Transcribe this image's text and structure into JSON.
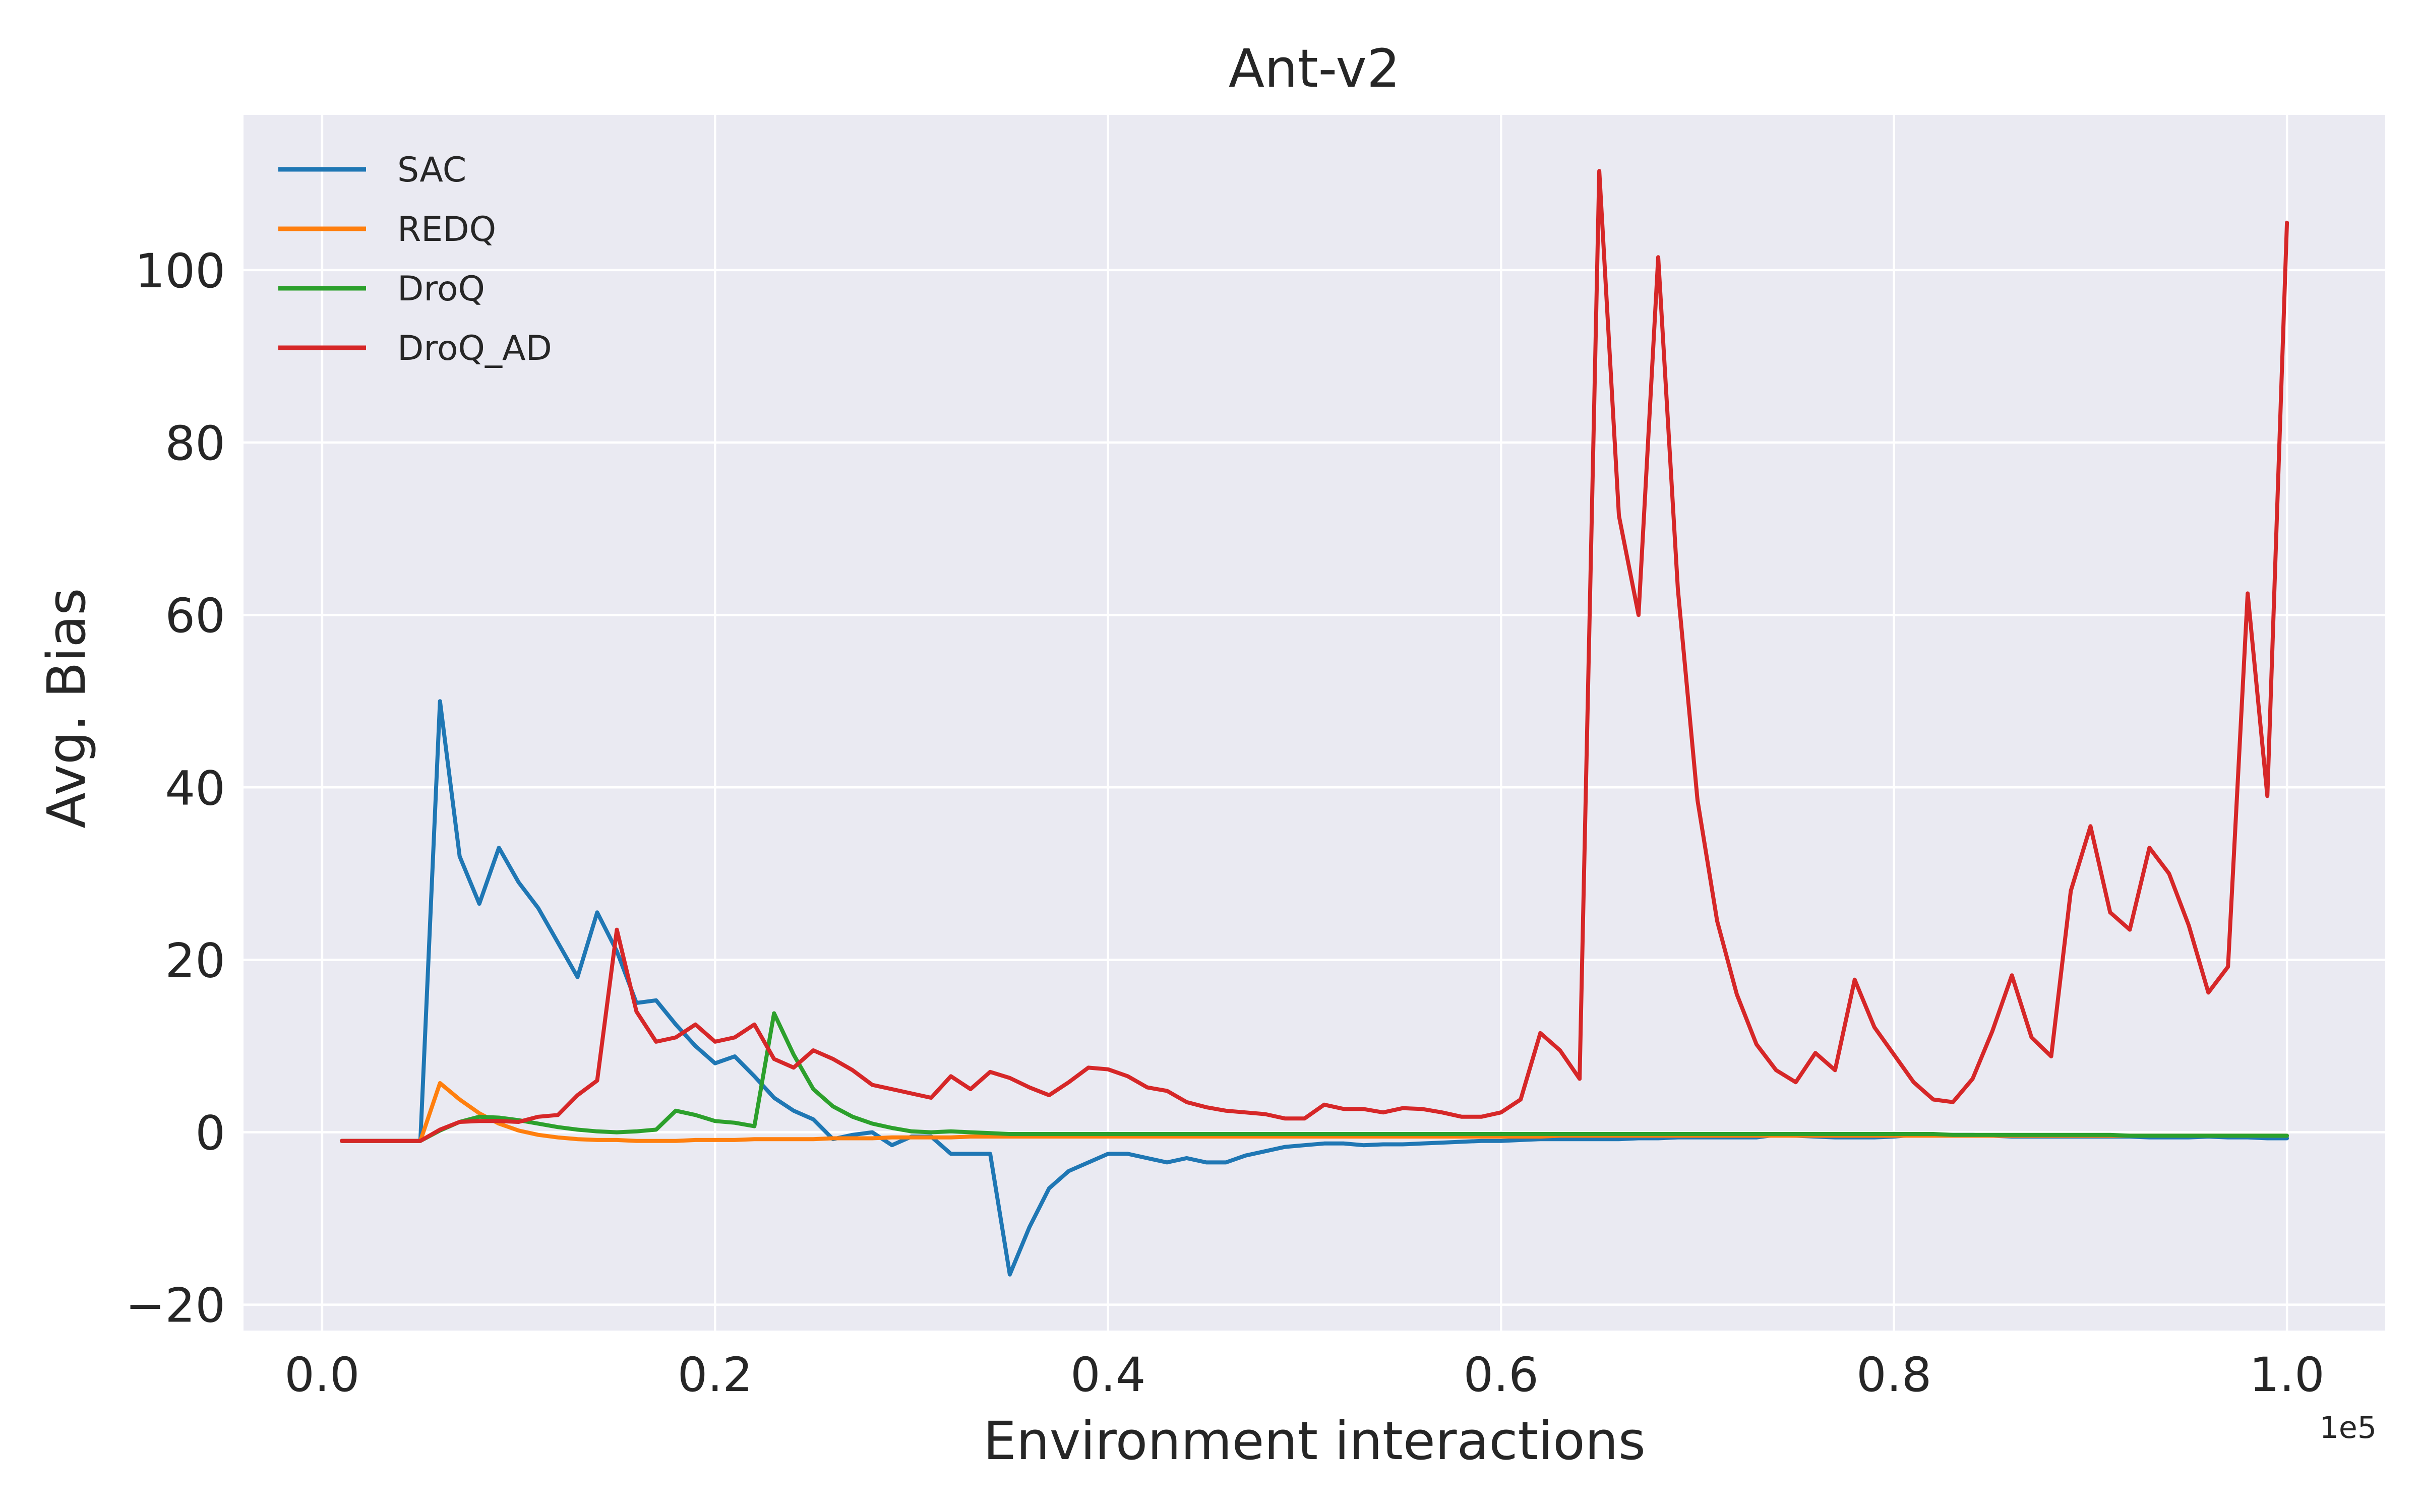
{
  "chart_data": {
    "type": "line",
    "title": "Ant-v2",
    "xlabel": "Environment interactions",
    "ylabel": "Avg. Bias",
    "x_offset_label": "1e5",
    "xlim": [
      -0.04,
      1.05
    ],
    "ylim": [
      -23,
      118
    ],
    "xticks": [
      0.0,
      0.2,
      0.4,
      0.6,
      0.8,
      1.0
    ],
    "xtick_labels": [
      "0.0",
      "0.2",
      "0.4",
      "0.6",
      "0.8",
      "1.0"
    ],
    "yticks": [
      -20,
      0,
      20,
      40,
      60,
      80,
      100
    ],
    "ytick_labels": [
      "−20",
      "0",
      "20",
      "40",
      "60",
      "80",
      "100"
    ],
    "grid": true,
    "background": "#eaeaf2",
    "legend_position": "top-left",
    "x": [
      0.01,
      0.02,
      0.03,
      0.04,
      0.05,
      0.06,
      0.07,
      0.08,
      0.09,
      0.1,
      0.11,
      0.12,
      0.13,
      0.14,
      0.15,
      0.16,
      0.17,
      0.18,
      0.19,
      0.2,
      0.21,
      0.22,
      0.23,
      0.24,
      0.25,
      0.26,
      0.27,
      0.28,
      0.29,
      0.3,
      0.31,
      0.32,
      0.33,
      0.34,
      0.35,
      0.36,
      0.37,
      0.38,
      0.39,
      0.4,
      0.41,
      0.42,
      0.43,
      0.44,
      0.45,
      0.46,
      0.47,
      0.48,
      0.49,
      0.5,
      0.51,
      0.52,
      0.53,
      0.54,
      0.55,
      0.56,
      0.57,
      0.58,
      0.59,
      0.6,
      0.61,
      0.62,
      0.63,
      0.64,
      0.65,
      0.66,
      0.67,
      0.68,
      0.69,
      0.7,
      0.71,
      0.72,
      0.73,
      0.74,
      0.75,
      0.76,
      0.77,
      0.78,
      0.79,
      0.8,
      0.81,
      0.82,
      0.83,
      0.84,
      0.85,
      0.86,
      0.87,
      0.88,
      0.89,
      0.9,
      0.91,
      0.92,
      0.93,
      0.94,
      0.95,
      0.96,
      0.97,
      0.98,
      0.99,
      1.0
    ],
    "series": [
      {
        "name": "SAC",
        "color": "#1f77b4",
        "values": [
          -1,
          -1,
          -1,
          -1,
          -1,
          50,
          32,
          26.5,
          33,
          29,
          26,
          22,
          18,
          25.5,
          21,
          15,
          15.3,
          12.5,
          10,
          8,
          8.8,
          6.5,
          4,
          2.5,
          1.5,
          -0.8,
          -0.3,
          0,
          -1.5,
          -0.5,
          -0.5,
          -2.5,
          -2.5,
          -2.5,
          -16.5,
          -11,
          -6.5,
          -4.5,
          -3.5,
          -2.5,
          -2.5,
          -3,
          -3.5,
          -3,
          -3.5,
          -3.5,
          -2.7,
          -2.2,
          -1.7,
          -1.5,
          -1.3,
          -1.3,
          -1.5,
          -1.4,
          -1.4,
          -1.3,
          -1.2,
          -1.1,
          -1,
          -1,
          -0.9,
          -0.8,
          -0.8,
          -0.8,
          -0.8,
          -0.8,
          -0.7,
          -0.7,
          -0.6,
          -0.6,
          -0.6,
          -0.6,
          -0.6,
          -0.3,
          -0.4,
          -0.5,
          -0.6,
          -0.6,
          -0.6,
          -0.5,
          -0.3,
          -0.3,
          -0.3,
          -0.3,
          -0.4,
          -0.5,
          -0.5,
          -0.5,
          -0.5,
          -0.5,
          -0.5,
          -0.5,
          -0.6,
          -0.6,
          -0.6,
          -0.5,
          -0.6,
          -0.6,
          -0.7,
          -0.7
        ]
      },
      {
        "name": "REDQ",
        "color": "#ff7f0e",
        "values": [
          -1,
          -1,
          -1,
          -1,
          -1,
          5.7,
          3.8,
          2.2,
          1,
          0.2,
          -0.3,
          -0.6,
          -0.8,
          -0.9,
          -0.9,
          -1,
          -1,
          -1,
          -0.9,
          -0.9,
          -0.9,
          -0.8,
          -0.8,
          -0.8,
          -0.8,
          -0.7,
          -0.7,
          -0.7,
          -0.6,
          -0.6,
          -0.6,
          -0.6,
          -0.5,
          -0.5,
          -0.5,
          -0.5,
          -0.5,
          -0.5,
          -0.5,
          -0.5,
          -0.5,
          -0.5,
          -0.5,
          -0.5,
          -0.5,
          -0.5,
          -0.5,
          -0.5,
          -0.5,
          -0.5,
          -0.5,
          -0.5,
          -0.5,
          -0.5,
          -0.5,
          -0.5,
          -0.5,
          -0.5,
          -0.5,
          -0.5,
          -0.5,
          -0.5,
          -0.4,
          -0.4,
          -0.4,
          -0.4,
          -0.4,
          -0.4,
          -0.4,
          -0.4,
          -0.4,
          -0.4,
          -0.4,
          -0.4,
          -0.4,
          -0.4,
          -0.4,
          -0.4,
          -0.4,
          -0.4,
          -0.4,
          -0.4,
          -0.4,
          -0.4,
          -0.4,
          -0.4,
          -0.4,
          -0.4,
          -0.4,
          -0.4,
          -0.4,
          -0.4,
          -0.4,
          -0.4,
          -0.4,
          -0.4,
          -0.4,
          -0.4,
          -0.4,
          -0.4
        ]
      },
      {
        "name": "DroQ",
        "color": "#2ca02c",
        "values": [
          -1,
          -1,
          -1,
          -1,
          -1,
          0.2,
          1.2,
          1.8,
          1.7,
          1.4,
          1,
          0.6,
          0.3,
          0.1,
          0,
          0.1,
          0.3,
          2.5,
          2,
          1.3,
          1.1,
          0.7,
          13.8,
          9,
          5,
          3,
          1.8,
          1,
          0.5,
          0.1,
          0,
          0.1,
          0,
          -0.1,
          -0.2,
          -0.2,
          -0.2,
          -0.2,
          -0.2,
          -0.2,
          -0.2,
          -0.2,
          -0.2,
          -0.2,
          -0.2,
          -0.2,
          -0.2,
          -0.2,
          -0.2,
          -0.2,
          -0.2,
          -0.2,
          -0.2,
          -0.2,
          -0.2,
          -0.2,
          -0.2,
          -0.2,
          -0.2,
          -0.2,
          -0.2,
          -0.2,
          -0.2,
          -0.2,
          -0.2,
          -0.2,
          -0.2,
          -0.2,
          -0.2,
          -0.2,
          -0.2,
          -0.2,
          -0.2,
          -0.2,
          -0.2,
          -0.2,
          -0.2,
          -0.2,
          -0.2,
          -0.2,
          -0.2,
          -0.2,
          -0.3,
          -0.3,
          -0.3,
          -0.3,
          -0.3,
          -0.3,
          -0.3,
          -0.3,
          -0.3,
          -0.4,
          -0.4,
          -0.4,
          -0.4,
          -0.4,
          -0.4,
          -0.4,
          -0.4,
          -0.4
        ]
      },
      {
        "name": "DroQ_AD",
        "color": "#d62728",
        "values": [
          -1,
          -1,
          -1,
          -1,
          -1,
          0.3,
          1.2,
          1.3,
          1.3,
          1.2,
          1.8,
          2,
          4.3,
          6,
          23.5,
          14,
          10.5,
          11,
          12.5,
          10.5,
          11,
          12.5,
          8.5,
          7.5,
          9.5,
          8.5,
          7.2,
          5.5,
          5,
          4.5,
          4,
          6.5,
          5,
          7,
          6.3,
          5.2,
          4.3,
          5.8,
          7.5,
          7.3,
          6.5,
          5.2,
          4.8,
          3.5,
          2.9,
          2.5,
          2.3,
          2.1,
          1.6,
          1.6,
          3.2,
          2.7,
          2.7,
          2.3,
          2.8,
          2.7,
          2.3,
          1.8,
          1.8,
          2.3,
          3.8,
          11.5,
          9.5,
          6.2,
          111.5,
          71.5,
          60,
          101.5,
          63,
          38.5,
          24.5,
          16,
          10.2,
          7.2,
          5.8,
          9.2,
          7.2,
          17.7,
          12.2,
          9,
          5.8,
          3.8,
          3.5,
          6.2,
          11.7,
          18.2,
          11,
          8.8,
          28,
          35.5,
          25.5,
          23.5,
          33,
          30,
          24,
          16.2,
          19.2,
          62.5,
          39,
          105.5
        ]
      }
    ]
  }
}
